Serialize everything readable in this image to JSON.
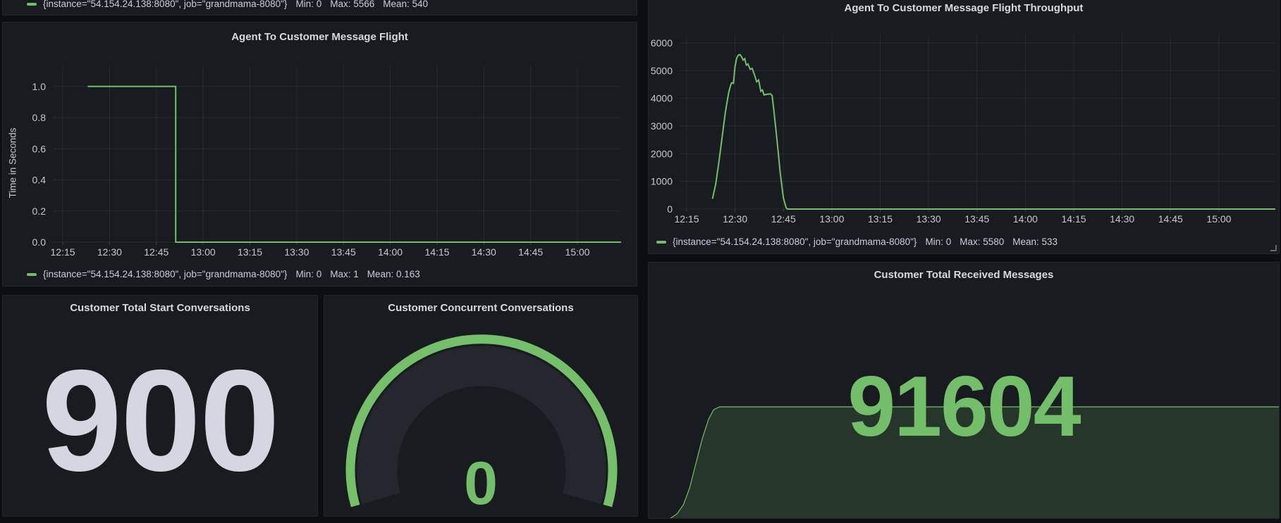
{
  "colors": {
    "background": "#0d0e11",
    "panel_background": "#181b1f",
    "series_green": "#73bf69",
    "stat_light": "#d5d6e1",
    "text": "#ccccdc",
    "title_text": "#d8d9da",
    "axis_text": "#c7c8ce",
    "area_fill": "rgba(115,191,105,0.17)",
    "gauge_track": "#24272e"
  },
  "panels": {
    "partial_top_left": {
      "legend": {
        "series": "{instance=\"54.154.24.138:8080\", job=\"grandmama-8080\"}",
        "stats": [
          "Min: 0",
          "Max: 5566",
          "Mean: 540"
        ]
      }
    },
    "flight": {
      "title": "Agent To Customer Message Flight",
      "y_axis_label": "Time in Seconds",
      "legend": {
        "series": "{instance=\"54.154.24.138:8080\", job=\"grandmama-8080\"}",
        "stats": [
          "Min: 0",
          "Max: 1",
          "Mean: 0.163"
        ]
      }
    },
    "throughput": {
      "title": "Agent To Customer Message Flight Throughput",
      "legend": {
        "series": "{instance=\"54.154.24.138:8080\", job=\"grandmama-8080\"}",
        "stats": [
          "Min: 0",
          "Max: 5580",
          "Mean: 533"
        ]
      }
    },
    "start_conversations": {
      "title": "Customer Total Start Conversations",
      "value": "900"
    },
    "concurrent_conversations": {
      "title": "Customer Concurrent Conversations",
      "value": "0"
    },
    "received_messages": {
      "title": "Customer Total Received Messages",
      "value": "91604"
    }
  },
  "chart_data": [
    {
      "id": "flight",
      "type": "line",
      "title": "Agent To Customer Message Flight",
      "xlabel": "",
      "ylabel": "Time in Seconds",
      "grid": true,
      "legend_position": "bottom",
      "x_tick_labels": [
        "12:15",
        "12:30",
        "12:45",
        "13:00",
        "13:15",
        "13:30",
        "13:45",
        "14:00",
        "14:15",
        "14:30",
        "14:45",
        "15:00"
      ],
      "x_tick_minutes": [
        15,
        30,
        45,
        60,
        75,
        90,
        105,
        120,
        135,
        150,
        165,
        180
      ],
      "y_tick_labels": [
        "0.0",
        "0.2",
        "0.4",
        "0.6",
        "0.8",
        "1.0"
      ],
      "y_tick_values": [
        0,
        0.2,
        0.4,
        0.6,
        0.8,
        1.0
      ],
      "xlim_minutes": [
        11.6,
        194
      ],
      "ylim": [
        0,
        1.13
      ],
      "series": [
        {
          "name": "{instance=\"54.154.24.138:8080\", job=\"grandmama-8080\"}",
          "color": "#73bf69",
          "min": 0,
          "max": 1,
          "mean": 0.163,
          "points": [
            [
              23,
              1
            ],
            [
              51.2,
              1
            ],
            [
              51.2,
              0
            ],
            [
              194,
              0
            ]
          ]
        }
      ]
    },
    {
      "id": "throughput",
      "type": "line",
      "title": "Agent To Customer Message Flight Throughput",
      "xlabel": "",
      "ylabel": "",
      "grid": true,
      "legend_position": "bottom",
      "x_tick_labels": [
        "12:15",
        "12:30",
        "12:45",
        "13:00",
        "13:15",
        "13:30",
        "13:45",
        "14:00",
        "14:15",
        "14:30",
        "14:45",
        "15:00"
      ],
      "x_tick_minutes": [
        15,
        30,
        45,
        60,
        75,
        90,
        105,
        120,
        135,
        150,
        165,
        180
      ],
      "y_tick_labels": [
        "0",
        "1000",
        "2000",
        "3000",
        "4000",
        "5000",
        "6000"
      ],
      "y_tick_values": [
        0,
        1000,
        2000,
        3000,
        4000,
        5000,
        6000
      ],
      "xlim_minutes": [
        12.6,
        197.5
      ],
      "ylim": [
        0,
        6305
      ],
      "series": [
        {
          "name": "{instance=\"54.154.24.138:8080\", job=\"grandmama-8080\"}",
          "color": "#73bf69",
          "min": 0,
          "max": 5580,
          "mean": 533,
          "points": [
            [
              23,
              370
            ],
            [
              24,
              900
            ],
            [
              25,
              1700
            ],
            [
              26,
              2600
            ],
            [
              27,
              3500
            ],
            [
              28,
              4200
            ],
            [
              28.7,
              4500
            ],
            [
              29,
              4560
            ],
            [
              29.5,
              4540
            ],
            [
              30,
              5150
            ],
            [
              30.5,
              5450
            ],
            [
              31,
              5560
            ],
            [
              31.5,
              5580
            ],
            [
              32,
              5500
            ],
            [
              32.5,
              5380
            ],
            [
              33,
              5430
            ],
            [
              33.5,
              5200
            ],
            [
              34,
              5240
            ],
            [
              34.7,
              5050
            ],
            [
              35.3,
              5080
            ],
            [
              36,
              4850
            ],
            [
              36.7,
              4600
            ],
            [
              37.3,
              4660
            ],
            [
              38,
              4250
            ],
            [
              38.5,
              4300
            ],
            [
              39,
              4120
            ],
            [
              40,
              4150
            ],
            [
              41,
              4160
            ],
            [
              41.5,
              4100
            ],
            [
              42,
              3600
            ],
            [
              43,
              2500
            ],
            [
              44,
              1300
            ],
            [
              45,
              400
            ],
            [
              45.8,
              60
            ],
            [
              46.2,
              0
            ],
            [
              197.5,
              0
            ]
          ]
        }
      ]
    },
    {
      "id": "received",
      "type": "area",
      "title": "Customer Total Received Messages",
      "value": 91604,
      "color": "#73bf69",
      "fill": "rgba(115,191,105,0.17)",
      "x_domain": [
        0,
        1
      ],
      "y_domain": [
        0,
        1
      ],
      "points": [
        [
          0,
          0
        ],
        [
          0.033,
          0.005
        ],
        [
          0.045,
          0.05
        ],
        [
          0.055,
          0.13
        ],
        [
          0.065,
          0.28
        ],
        [
          0.075,
          0.5
        ],
        [
          0.085,
          0.72
        ],
        [
          0.095,
          0.89
        ],
        [
          0.103,
          0.975
        ],
        [
          0.112,
          1
        ],
        [
          1,
          1
        ]
      ]
    },
    {
      "id": "start_conversations",
      "type": "stat",
      "title": "Customer Total Start Conversations",
      "value": 900
    },
    {
      "id": "concurrent_gauge",
      "type": "gauge",
      "title": "Customer Concurrent Conversations",
      "value": 0,
      "color": "#73bf69"
    }
  ]
}
